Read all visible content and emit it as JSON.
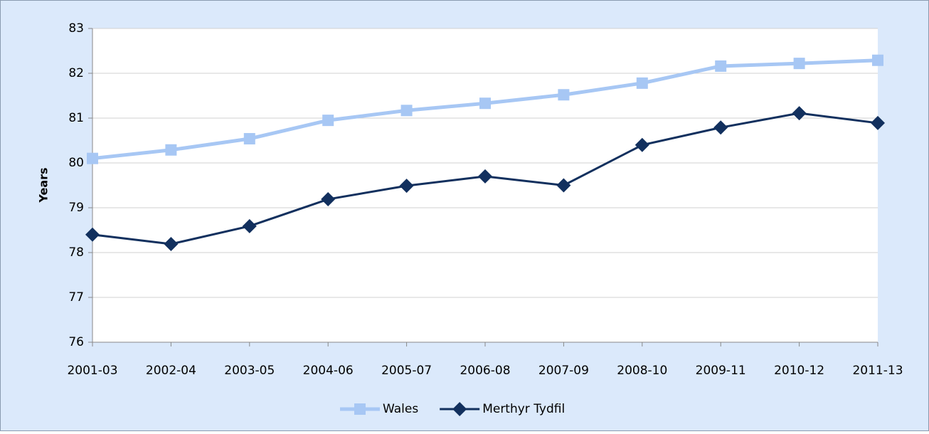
{
  "chart_data": {
    "type": "line",
    "y_label": "Years",
    "categories": [
      "2001-03",
      "2002-04",
      "2003-05",
      "2004-06",
      "2005-07",
      "2006-08",
      "2007-09",
      "2008-10",
      "2009-11",
      "2010-12",
      "2011-13"
    ],
    "series": [
      {
        "name": "Wales",
        "color": "#a7c7f4",
        "marker": "square",
        "values": [
          80.1,
          80.29,
          80.54,
          80.95,
          81.17,
          81.33,
          81.52,
          81.78,
          82.16,
          82.22,
          82.29
        ]
      },
      {
        "name": "Merthyr Tydfil",
        "color": "#12305e",
        "marker": "diamond",
        "values": [
          78.4,
          78.19,
          78.59,
          79.19,
          79.49,
          79.7,
          79.5,
          80.4,
          80.79,
          81.11,
          80.89
        ]
      }
    ],
    "ylim": [
      76,
      83
    ],
    "yticks": [
      76,
      77,
      78,
      79,
      80,
      81,
      82,
      83
    ],
    "grid": true,
    "legend": "bottom"
  }
}
